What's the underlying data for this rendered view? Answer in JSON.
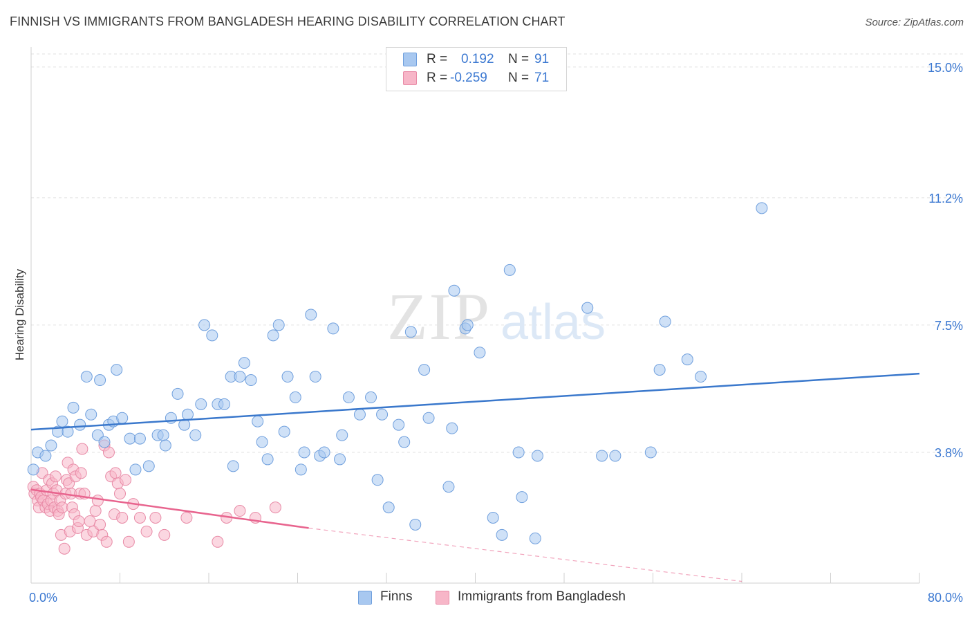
{
  "title": "FINNISH VS IMMIGRANTS FROM BANGLADESH HEARING DISABILITY CORRELATION CHART",
  "source": "Source: ZipAtlas.com",
  "watermark": {
    "zip": "ZIP",
    "atlas": "atlas"
  },
  "legend": {
    "rows": [
      {
        "r_label": "R =",
        "r_value": "0.192",
        "n_label": "N =",
        "n_value": "91",
        "color": "#a8c8f0"
      },
      {
        "r_label": "R =",
        "r_value": "-0.259",
        "n_label": "N =",
        "n_value": "71",
        "color": "#f7b6c8"
      }
    ]
  },
  "bottom_legend": [
    {
      "label": "Finns",
      "color": "#a8c8f0"
    },
    {
      "label": "Immigrants from Bangladesh",
      "color": "#f7b6c8"
    }
  ],
  "chart_data": {
    "type": "scatter",
    "title": "FINNISH VS IMMIGRANTS FROM BANGLADESH HEARING DISABILITY CORRELATION CHART",
    "xlabel": "",
    "ylabel": "Hearing Disability",
    "xlim": [
      0,
      80
    ],
    "ylim": [
      0,
      15.5
    ],
    "x_tick_labels": [
      "0.0%",
      "80.0%"
    ],
    "y_ticks": [
      3.8,
      7.5,
      11.2,
      15.0
    ],
    "y_tick_labels": [
      "3.8%",
      "7.5%",
      "11.2%",
      "15.0%"
    ],
    "grid": true,
    "legend_position": "top-center",
    "series": [
      {
        "name": "Finns",
        "color": "#a8c8f0",
        "edge_color": "#6f9fdd",
        "trend_color": "#3a78cc",
        "trend": {
          "x0": 0,
          "y0": 4.46,
          "x1": 80,
          "y1": 6.09
        },
        "points": [
          [
            0.2,
            3.3
          ],
          [
            0.6,
            3.8
          ],
          [
            1.3,
            3.7
          ],
          [
            1.8,
            4.0
          ],
          [
            2.4,
            4.4
          ],
          [
            2.8,
            4.7
          ],
          [
            3.3,
            4.4
          ],
          [
            3.8,
            5.1
          ],
          [
            4.4,
            4.6
          ],
          [
            5.0,
            6.0
          ],
          [
            5.4,
            4.9
          ],
          [
            6.0,
            4.3
          ],
          [
            6.2,
            5.9
          ],
          [
            6.6,
            4.1
          ],
          [
            7.0,
            4.6
          ],
          [
            7.4,
            4.7
          ],
          [
            7.7,
            6.2
          ],
          [
            8.2,
            4.8
          ],
          [
            8.9,
            4.2
          ],
          [
            9.4,
            3.3
          ],
          [
            9.8,
            4.2
          ],
          [
            10.6,
            3.4
          ],
          [
            11.4,
            4.3
          ],
          [
            11.9,
            4.3
          ],
          [
            12.1,
            4.0
          ],
          [
            12.6,
            4.8
          ],
          [
            13.2,
            5.5
          ],
          [
            13.8,
            4.6
          ],
          [
            14.1,
            4.9
          ],
          [
            14.8,
            4.3
          ],
          [
            15.3,
            5.2
          ],
          [
            15.6,
            7.5
          ],
          [
            16.3,
            7.2
          ],
          [
            16.8,
            5.2
          ],
          [
            17.4,
            5.2
          ],
          [
            18.0,
            6.0
          ],
          [
            18.2,
            3.4
          ],
          [
            18.8,
            6.0
          ],
          [
            19.2,
            6.4
          ],
          [
            19.8,
            5.9
          ],
          [
            20.4,
            4.7
          ],
          [
            20.8,
            4.1
          ],
          [
            21.3,
            3.6
          ],
          [
            21.8,
            7.2
          ],
          [
            22.3,
            7.5
          ],
          [
            22.8,
            4.4
          ],
          [
            23.1,
            6.0
          ],
          [
            23.8,
            5.4
          ],
          [
            24.3,
            3.3
          ],
          [
            24.6,
            3.8
          ],
          [
            25.2,
            7.8
          ],
          [
            25.6,
            6.0
          ],
          [
            26.0,
            3.7
          ],
          [
            26.4,
            3.8
          ],
          [
            27.2,
            7.4
          ],
          [
            27.8,
            3.6
          ],
          [
            28.0,
            4.3
          ],
          [
            28.6,
            5.4
          ],
          [
            29.6,
            4.9
          ],
          [
            30.6,
            5.4
          ],
          [
            31.2,
            3.0
          ],
          [
            31.6,
            4.9
          ],
          [
            32.2,
            2.2
          ],
          [
            33.1,
            4.6
          ],
          [
            33.6,
            4.1
          ],
          [
            34.2,
            7.3
          ],
          [
            34.6,
            1.7
          ],
          [
            35.4,
            6.2
          ],
          [
            35.8,
            4.8
          ],
          [
            37.6,
            2.8
          ],
          [
            37.9,
            4.5
          ],
          [
            38.1,
            8.5
          ],
          [
            39.1,
            7.4
          ],
          [
            39.3,
            7.5
          ],
          [
            40.4,
            6.7
          ],
          [
            41.6,
            1.9
          ],
          [
            42.4,
            1.4
          ],
          [
            43.1,
            9.1
          ],
          [
            43.9,
            3.8
          ],
          [
            44.2,
            2.5
          ],
          [
            45.4,
            1.3
          ],
          [
            45.6,
            3.7
          ],
          [
            50.1,
            8.0
          ],
          [
            51.4,
            3.7
          ],
          [
            52.6,
            3.7
          ],
          [
            55.8,
            3.8
          ],
          [
            56.6,
            6.2
          ],
          [
            57.1,
            7.6
          ],
          [
            59.1,
            6.5
          ],
          [
            60.3,
            6.0
          ],
          [
            65.8,
            10.9
          ]
        ]
      },
      {
        "name": "Immigrants from Bangladesh",
        "color": "#f7b6c8",
        "edge_color": "#e88aa6",
        "trend_color": "#e8648e",
        "trend": {
          "x0": 0,
          "y0": 2.72,
          "x1": 25,
          "y1": 1.6
        },
        "trend_dashed": {
          "x0": 25,
          "y0": 1.6,
          "x1": 64,
          "y1": 0.05
        },
        "points": [
          [
            0.2,
            2.8
          ],
          [
            0.3,
            2.6
          ],
          [
            0.5,
            2.7
          ],
          [
            0.6,
            2.4
          ],
          [
            0.7,
            2.2
          ],
          [
            0.8,
            2.6
          ],
          [
            0.9,
            2.5
          ],
          [
            1.0,
            3.2
          ],
          [
            1.1,
            2.4
          ],
          [
            1.3,
            2.2
          ],
          [
            1.4,
            2.7
          ],
          [
            1.5,
            2.3
          ],
          [
            1.6,
            3.0
          ],
          [
            1.7,
            2.1
          ],
          [
            1.8,
            2.4
          ],
          [
            1.9,
            2.9
          ],
          [
            2.0,
            2.6
          ],
          [
            2.1,
            2.2
          ],
          [
            2.2,
            3.1
          ],
          [
            2.3,
            2.7
          ],
          [
            2.4,
            2.1
          ],
          [
            2.5,
            2.0
          ],
          [
            2.6,
            2.4
          ],
          [
            2.7,
            1.4
          ],
          [
            2.8,
            2.2
          ],
          [
            3.0,
            1.0
          ],
          [
            3.1,
            2.6
          ],
          [
            3.2,
            3.0
          ],
          [
            3.3,
            3.5
          ],
          [
            3.4,
            2.9
          ],
          [
            3.5,
            1.5
          ],
          [
            3.6,
            2.6
          ],
          [
            3.7,
            2.2
          ],
          [
            3.8,
            3.3
          ],
          [
            3.9,
            2.0
          ],
          [
            4.0,
            3.1
          ],
          [
            4.2,
            1.6
          ],
          [
            4.3,
            1.8
          ],
          [
            4.4,
            2.6
          ],
          [
            4.5,
            3.2
          ],
          [
            4.6,
            3.9
          ],
          [
            4.8,
            2.6
          ],
          [
            5.0,
            1.4
          ],
          [
            5.3,
            1.8
          ],
          [
            5.6,
            1.5
          ],
          [
            5.8,
            2.1
          ],
          [
            6.0,
            2.4
          ],
          [
            6.2,
            1.7
          ],
          [
            6.4,
            1.4
          ],
          [
            6.6,
            4.0
          ],
          [
            6.8,
            1.2
          ],
          [
            7.0,
            3.8
          ],
          [
            7.2,
            3.1
          ],
          [
            7.5,
            2.0
          ],
          [
            7.6,
            3.2
          ],
          [
            7.8,
            2.9
          ],
          [
            8.0,
            2.6
          ],
          [
            8.2,
            1.9
          ],
          [
            8.5,
            3.0
          ],
          [
            8.8,
            1.2
          ],
          [
            9.2,
            2.3
          ],
          [
            9.8,
            1.9
          ],
          [
            10.4,
            1.5
          ],
          [
            11.2,
            1.9
          ],
          [
            12.0,
            1.4
          ],
          [
            14.0,
            1.9
          ],
          [
            16.8,
            1.2
          ],
          [
            17.6,
            1.9
          ],
          [
            18.8,
            2.1
          ],
          [
            20.2,
            1.9
          ],
          [
            22.0,
            2.2
          ]
        ]
      }
    ]
  }
}
